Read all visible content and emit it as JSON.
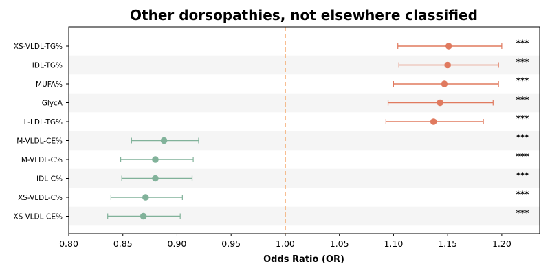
{
  "chart_data": {
    "type": "forest",
    "title": "Other dorsopathies, not elsewhere classified",
    "xlabel": "Odds Ratio (OR)",
    "xlim": [
      0.8,
      1.235
    ],
    "xticks": [
      "0.80",
      "0.85",
      "0.90",
      "0.95",
      "1.00",
      "1.05",
      "1.10",
      "1.15",
      "1.20"
    ],
    "reference_line": 1.0,
    "colors": {
      "positive": "#e07a5f",
      "negative": "#81b29a",
      "reference": "#f4a261",
      "band": "#f5f5f5"
    },
    "rows": [
      {
        "label": "XS-VLDL-TG%",
        "or": 1.151,
        "lo": 1.104,
        "hi": 1.2,
        "sig": "***"
      },
      {
        "label": "IDL-TG%",
        "or": 1.15,
        "lo": 1.105,
        "hi": 1.197,
        "sig": "***"
      },
      {
        "label": "MUFA%",
        "or": 1.147,
        "lo": 1.1,
        "hi": 1.197,
        "sig": "***"
      },
      {
        "label": "GlycA",
        "or": 1.143,
        "lo": 1.095,
        "hi": 1.192,
        "sig": "***"
      },
      {
        "label": "L-LDL-TG%",
        "or": 1.137,
        "lo": 1.093,
        "hi": 1.183,
        "sig": "***"
      },
      {
        "label": "M-VLDL-CE%",
        "or": 0.888,
        "lo": 0.858,
        "hi": 0.92,
        "sig": "***"
      },
      {
        "label": "M-VLDL-C%",
        "or": 0.88,
        "lo": 0.848,
        "hi": 0.915,
        "sig": "***"
      },
      {
        "label": "IDL-C%",
        "or": 0.88,
        "lo": 0.849,
        "hi": 0.914,
        "sig": "***"
      },
      {
        "label": "XS-VLDL-C%",
        "or": 0.871,
        "lo": 0.839,
        "hi": 0.905,
        "sig": "***"
      },
      {
        "label": "XS-VLDL-CE%",
        "or": 0.869,
        "lo": 0.836,
        "hi": 0.903,
        "sig": "***"
      }
    ]
  }
}
